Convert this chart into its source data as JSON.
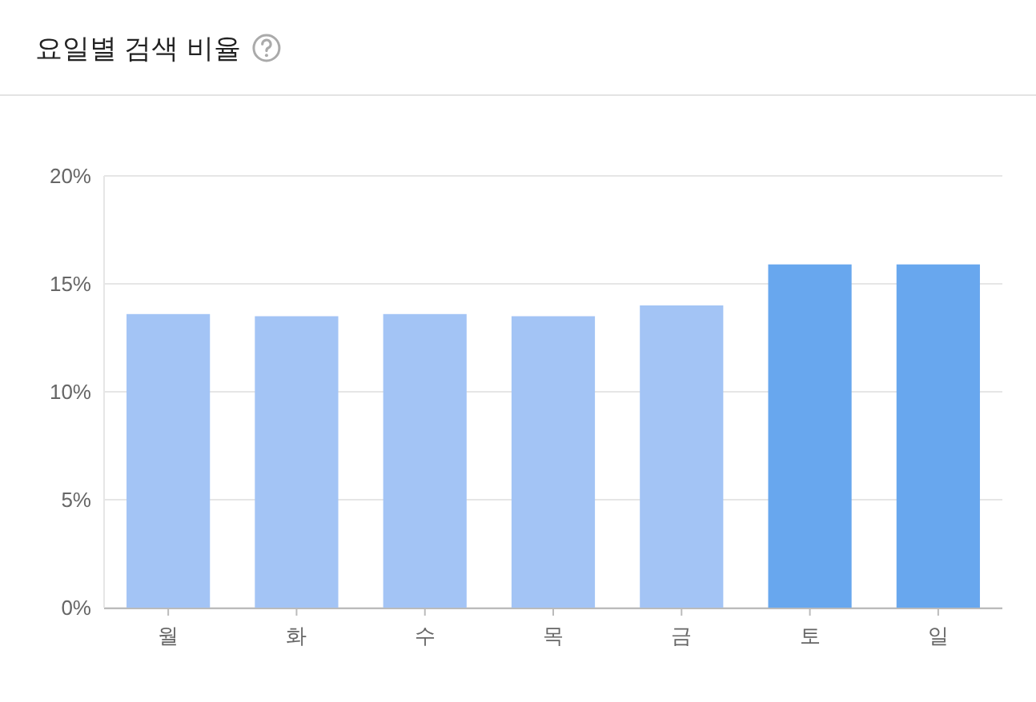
{
  "chart_data": {
    "type": "bar",
    "title": "요일별 검색 비율",
    "categories": [
      "월",
      "화",
      "수",
      "목",
      "금",
      "토",
      "일"
    ],
    "values": [
      13.6,
      13.5,
      13.6,
      13.5,
      14.0,
      15.9,
      15.9
    ],
    "colors": [
      "#a3c4f5",
      "#a3c4f5",
      "#a3c4f5",
      "#a3c4f5",
      "#a3c4f5",
      "#68a7ee",
      "#68a7ee"
    ],
    "ylim": [
      0,
      20
    ],
    "yticks": [
      {
        "value": 0,
        "label": "0%"
      },
      {
        "value": 5,
        "label": "5%"
      },
      {
        "value": 10,
        "label": "10%"
      },
      {
        "value": 15,
        "label": "15%"
      },
      {
        "value": 20,
        "label": "20%"
      }
    ],
    "grid": "y"
  }
}
